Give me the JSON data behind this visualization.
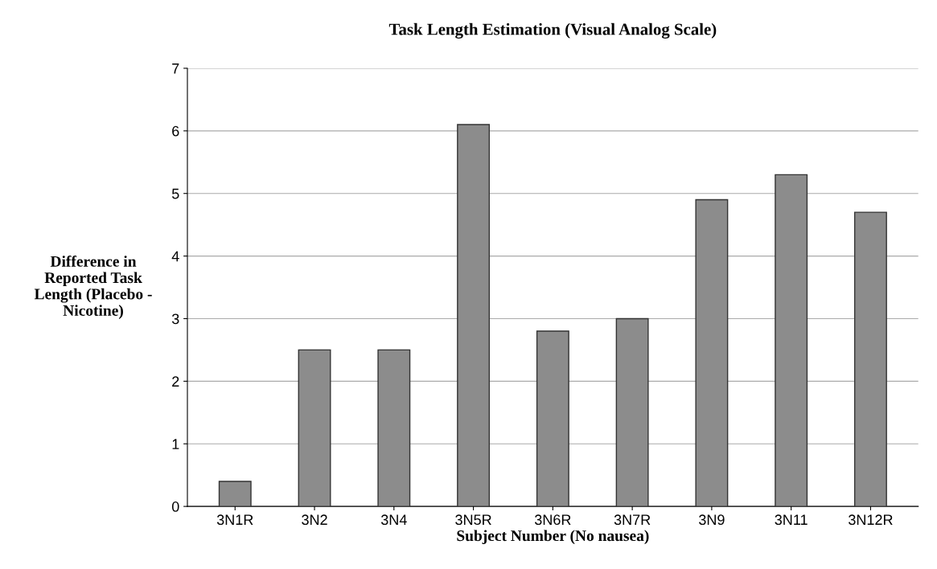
{
  "chart_data": {
    "type": "bar",
    "title": "Task Length Estimation (Visual Analog Scale)",
    "xlabel": "Subject Number (No nausea)",
    "ylabel": "Difference in\nReported Task\nLength (Placebo -\nNicotine)",
    "categories": [
      "3N1R",
      "3N2",
      "3N4",
      "3N5R",
      "3N6R",
      "3N7R",
      "3N9",
      "3N11",
      "3N12R"
    ],
    "values": [
      0.4,
      2.5,
      2.5,
      6.1,
      2.8,
      3.0,
      4.9,
      5.3,
      4.7
    ],
    "color": "#8c8c8c",
    "ylim": [
      0,
      7
    ],
    "yticks": [
      0,
      1,
      2,
      3,
      4,
      5,
      6,
      7
    ],
    "grid": "y"
  }
}
